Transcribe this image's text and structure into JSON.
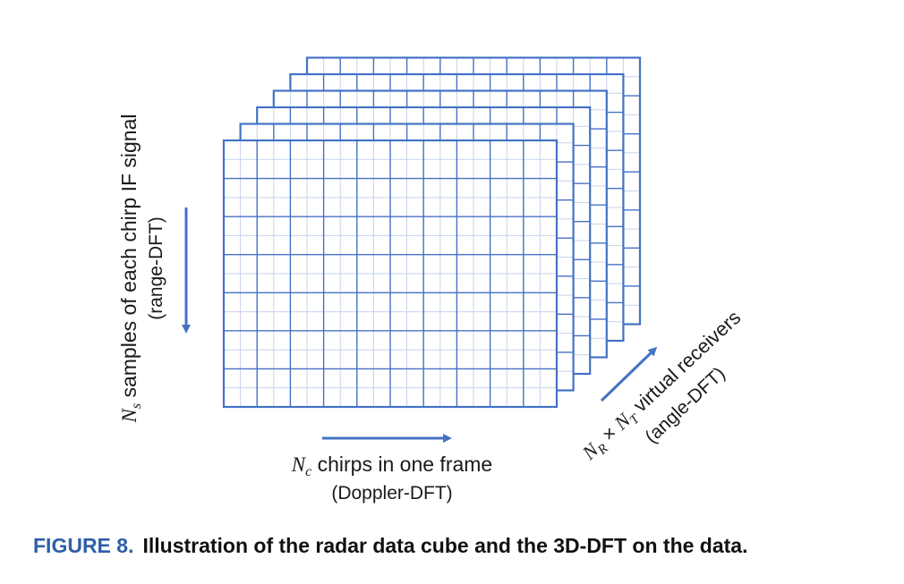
{
  "diagram": {
    "colors": {
      "grid_major": "#4472c4",
      "grid_minor": "#c5d3eb",
      "arrow": "#4472c4",
      "caption_label": "#2f5fa7",
      "text": "#111111"
    },
    "cube": {
      "layers": 6,
      "columns": 10,
      "rows": 7
    },
    "labels": {
      "range_main_sym": "N",
      "range_main_sub": "s",
      "range_main_text": " samples of each chirp IF signal",
      "range_sub": "(range-DFT)",
      "doppler_main_sym": "N",
      "doppler_main_sub": "c",
      "doppler_main_text": " chirps in one frame",
      "doppler_sub": "(Doppler-DFT)",
      "angle_sym1": "N",
      "angle_sub1": "R",
      "angle_times": " × ",
      "angle_sym2": "N",
      "angle_sub2": "T",
      "angle_text": " virtual receivers",
      "angle_sub": "(angle-DFT)"
    }
  },
  "caption": {
    "label": "FIGURE 8.",
    "text": "Illustration of the radar data cube and the 3D-DFT on the data."
  }
}
